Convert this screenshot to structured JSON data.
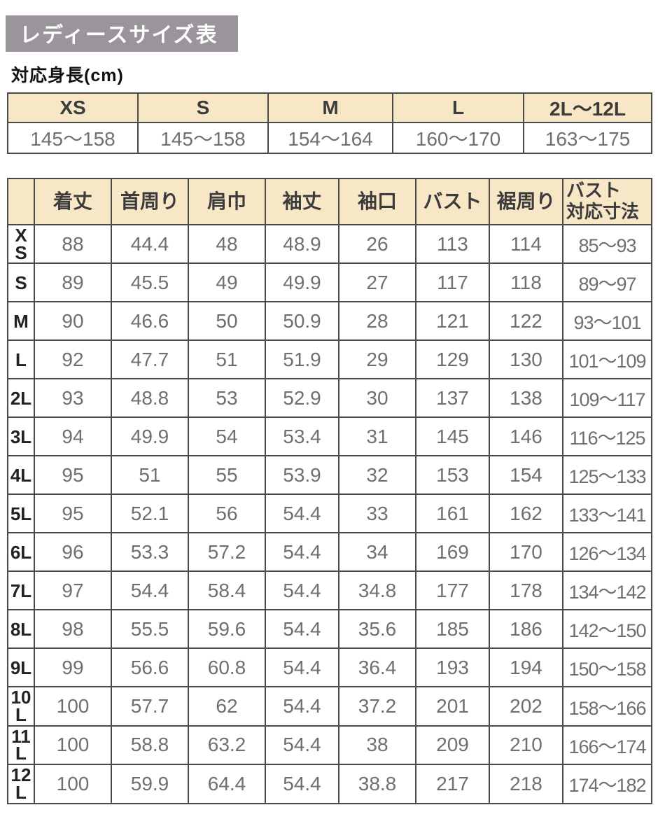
{
  "page": {
    "title": "レディースサイズ表",
    "subtitle": "対応身長(cm)"
  },
  "colors": {
    "title_bar_bg": "#9a949b",
    "table_header_bg": "#f8e7c7",
    "border": "#4a4a4a",
    "value_text": "#6f6f6f"
  },
  "height_table": {
    "columns": [
      "XS",
      "S",
      "M",
      "L",
      "2L〜12L"
    ],
    "values": [
      "145〜158",
      "145〜158",
      "154〜164",
      "160〜170",
      "163〜175"
    ]
  },
  "size_table": {
    "corner": "",
    "columns": [
      "着丈",
      "首周り",
      "肩巾",
      "袖丈",
      "袖口",
      "バスト",
      "裾周り",
      "バスト\n対応寸法"
    ],
    "rows": [
      {
        "size": "XS",
        "values": [
          "88",
          "44.4",
          "48",
          "48.9",
          "26",
          "113",
          "114",
          "85〜93"
        ]
      },
      {
        "size": "S",
        "values": [
          "89",
          "45.5",
          "49",
          "49.9",
          "27",
          "117",
          "118",
          "89〜97"
        ]
      },
      {
        "size": "M",
        "values": [
          "90",
          "46.6",
          "50",
          "50.9",
          "28",
          "121",
          "122",
          "93〜101"
        ]
      },
      {
        "size": "L",
        "values": [
          "92",
          "47.7",
          "51",
          "51.9",
          "29",
          "129",
          "130",
          "101〜109"
        ]
      },
      {
        "size": "2L",
        "values": [
          "93",
          "48.8",
          "53",
          "52.9",
          "30",
          "137",
          "138",
          "109〜117"
        ]
      },
      {
        "size": "3L",
        "values": [
          "94",
          "49.9",
          "54",
          "53.4",
          "31",
          "145",
          "146",
          "116〜125"
        ]
      },
      {
        "size": "4L",
        "values": [
          "95",
          "51",
          "55",
          "53.9",
          "32",
          "153",
          "154",
          "125〜133"
        ]
      },
      {
        "size": "5L",
        "values": [
          "95",
          "52.1",
          "56",
          "54.4",
          "33",
          "161",
          "162",
          "133〜141"
        ]
      },
      {
        "size": "6L",
        "values": [
          "96",
          "53.3",
          "57.2",
          "54.4",
          "34",
          "169",
          "170",
          "126〜134"
        ]
      },
      {
        "size": "7L",
        "values": [
          "97",
          "54.4",
          "58.4",
          "54.4",
          "34.8",
          "177",
          "178",
          "134〜142"
        ]
      },
      {
        "size": "8L",
        "values": [
          "98",
          "55.5",
          "59.6",
          "54.4",
          "35.6",
          "185",
          "186",
          "142〜150"
        ]
      },
      {
        "size": "9L",
        "values": [
          "99",
          "56.6",
          "60.8",
          "54.4",
          "36.4",
          "193",
          "194",
          "150〜158"
        ]
      },
      {
        "size": "10L",
        "values": [
          "100",
          "57.7",
          "62",
          "54.4",
          "37.2",
          "201",
          "202",
          "158〜166"
        ]
      },
      {
        "size": "11L",
        "values": [
          "100",
          "58.8",
          "63.2",
          "54.4",
          "38",
          "209",
          "210",
          "166〜174"
        ]
      },
      {
        "size": "12L",
        "values": [
          "100",
          "59.9",
          "64.4",
          "54.4",
          "38.8",
          "217",
          "218",
          "174〜182"
        ]
      }
    ]
  }
}
